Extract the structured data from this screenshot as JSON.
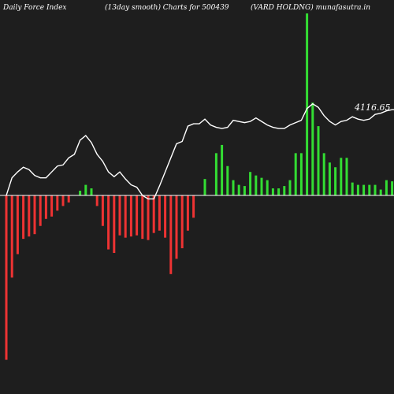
{
  "header": {
    "left": "Daily Force  Index",
    "center": "(13day smooth) Charts for 500439",
    "right": "(VARD HOLDNG) munafasutra.in"
  },
  "last_value_label": "4116.65",
  "colors": {
    "background": "#1e1e1e",
    "positive_bar": "#33dd33",
    "negative_bar": "#ee3333",
    "zero_line": "#ffffff",
    "smooth_line": "#ffffff"
  },
  "chart_data": {
    "type": "bar",
    "title": "(13day smooth) Charts for 500439",
    "last_value": 4116.65,
    "ylim": [
      -14500,
      15800
    ],
    "grid": false,
    "series": [
      {
        "name": "",
        "values": [
          -14000,
          -7000,
          -5000,
          -3700,
          -3500,
          -3300,
          -2600,
          -2000,
          -1800,
          -1300,
          -900,
          -600,
          0,
          400,
          900,
          600,
          -900,
          -2600,
          -4600,
          -4900,
          -3400,
          -3600,
          -3500,
          -3400,
          -3700,
          -3800,
          -3200,
          -3000,
          -3600,
          -6700,
          -5400,
          -4500,
          -3000,
          -1900,
          0,
          1400,
          0,
          3600,
          4300,
          2500,
          1300,
          900,
          800,
          2000,
          1700,
          1500,
          1300,
          600,
          600,
          800,
          1300,
          3600,
          3600,
          15500,
          7900,
          5900,
          3600,
          2800,
          2400,
          3200,
          3200,
          1100,
          900,
          900,
          900,
          900,
          500,
          1300,
          1200,
          1000,
          900,
          800
        ]
      },
      {
        "name": "",
        "values": [
          0,
          1500,
          2000,
          2400,
          2200,
          1700,
          1500,
          1500,
          2000,
          2500,
          2600,
          3200,
          3500,
          4700,
          5100,
          4500,
          3500,
          2900,
          2000,
          1600,
          2000,
          1400,
          900,
          700,
          0,
          -300,
          -300,
          800,
          2000,
          3200,
          4400,
          4600,
          5900,
          6100,
          6100,
          6500,
          6000,
          5800,
          5700,
          5800,
          6400,
          6300,
          6200,
          6300,
          6600,
          6300,
          6000,
          5800,
          5700,
          5700,
          6000,
          6200,
          6400,
          7400,
          7800,
          7500,
          6800,
          6300,
          6000,
          6300,
          6400,
          6700,
          6500,
          6400,
          6500,
          6900,
          7000,
          7200,
          7300,
          7300,
          7400,
          7400
        ]
      }
    ]
  }
}
